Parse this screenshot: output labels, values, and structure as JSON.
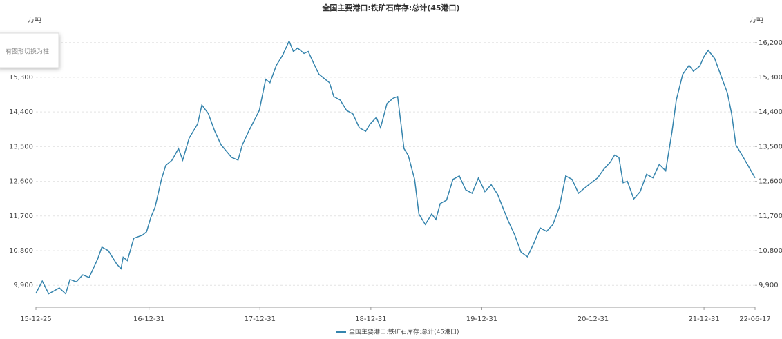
{
  "chart_data": {
    "type": "line",
    "title": "全国主要港口:铁矿石库存:总计(45港口)",
    "y_unit": "万吨",
    "y2_unit": "万吨",
    "toolbox_tip": "有图形切换为柱",
    "grid": true,
    "legend": "bottom",
    "xlim": [
      "2015-12-25",
      "2022-06-17"
    ],
    "xticks": [
      {
        "value": "2015-12-25",
        "label": "15-12-25"
      },
      {
        "value": "2016-12-31",
        "label": "16-12-31"
      },
      {
        "value": "2017-12-31",
        "label": "17-12-31"
      },
      {
        "value": "2018-12-31",
        "label": "18-12-31"
      },
      {
        "value": "2019-12-31",
        "label": "19-12-31"
      },
      {
        "value": "2020-12-31",
        "label": "20-12-31"
      },
      {
        "value": "2021-12-31",
        "label": "21-12-31"
      },
      {
        "value": "2022-06-17",
        "label": "22-06-17"
      }
    ],
    "ylim": [
      9330,
      16590
    ],
    "yticks": [
      {
        "value": 9900,
        "label": "9,900"
      },
      {
        "value": 10800,
        "label": "10,800"
      },
      {
        "value": 11700,
        "label": "11,700"
      },
      {
        "value": 12600,
        "label": "12,600"
      },
      {
        "value": 13500,
        "label": "13,500"
      },
      {
        "value": 14400,
        "label": "14,400"
      },
      {
        "value": 15300,
        "label": "15,300"
      },
      {
        "value": 16200,
        "label": "16,200"
      }
    ],
    "y2lim": [
      9330,
      16590
    ],
    "y2ticks": [
      {
        "value": 9900,
        "label": "9,900"
      },
      {
        "value": 10800,
        "label": "10,800"
      },
      {
        "value": 11700,
        "label": "11,700"
      },
      {
        "value": 12600,
        "label": "12,600"
      },
      {
        "value": 13500,
        "label": "13,500"
      },
      {
        "value": 14400,
        "label": "14,400"
      },
      {
        "value": 15300,
        "label": "15,300"
      },
      {
        "value": 16200,
        "label": "16,200"
      }
    ],
    "x": [
      "2015-12-25",
      "2016-01-15",
      "2016-02-05",
      "2016-03-11",
      "2016-04-01",
      "2016-04-15",
      "2016-05-06",
      "2016-05-27",
      "2016-06-17",
      "2016-07-15",
      "2016-07-29",
      "2016-08-19",
      "2016-09-16",
      "2016-09-30",
      "2016-10-07",
      "2016-10-21",
      "2016-11-11",
      "2016-12-09",
      "2016-12-23",
      "2017-01-06",
      "2017-01-20",
      "2017-02-10",
      "2017-02-24",
      "2017-03-17",
      "2017-04-07",
      "2017-04-21",
      "2017-05-12",
      "2017-06-09",
      "2017-06-23",
      "2017-07-14",
      "2017-08-04",
      "2017-08-25",
      "2017-09-29",
      "2017-10-20",
      "2017-11-03",
      "2017-11-24",
      "2017-12-29",
      "2018-01-19",
      "2018-02-02",
      "2018-02-23",
      "2018-03-16",
      "2018-04-06",
      "2018-04-20",
      "2018-05-04",
      "2018-05-25",
      "2018-06-08",
      "2018-06-29",
      "2018-07-13",
      "2018-08-17",
      "2018-08-31",
      "2018-09-21",
      "2018-10-12",
      "2018-11-02",
      "2018-11-23",
      "2018-12-14",
      "2018-12-28",
      "2019-01-18",
      "2019-02-01",
      "2019-02-22",
      "2019-03-15",
      "2019-03-29",
      "2019-04-19",
      "2019-05-03",
      "2019-05-24",
      "2019-06-07",
      "2019-06-28",
      "2019-07-19",
      "2019-08-02",
      "2019-08-16",
      "2019-09-06",
      "2019-09-27",
      "2019-10-18",
      "2019-11-08",
      "2019-11-29",
      "2019-12-20",
      "2020-01-10",
      "2020-01-31",
      "2020-02-21",
      "2020-03-13",
      "2020-03-27",
      "2020-04-17",
      "2020-05-08",
      "2020-05-29",
      "2020-06-19",
      "2020-07-10",
      "2020-07-31",
      "2020-08-21",
      "2020-09-11",
      "2020-10-02",
      "2020-10-23",
      "2020-11-13",
      "2020-12-04",
      "2020-12-25",
      "2021-01-15",
      "2021-02-05",
      "2021-02-26",
      "2021-03-12",
      "2021-03-26",
      "2021-04-09",
      "2021-04-23",
      "2021-05-14",
      "2021-06-04",
      "2021-06-25",
      "2021-07-16",
      "2021-08-06",
      "2021-08-27",
      "2021-09-17",
      "2021-10-01",
      "2021-10-22",
      "2021-11-12",
      "2021-11-26",
      "2021-12-17",
      "2021-12-31",
      "2022-01-14",
      "2022-02-04",
      "2022-02-25",
      "2022-03-18",
      "2022-04-01",
      "2022-04-15",
      "2022-05-06",
      "2022-06-17"
    ],
    "series": [
      {
        "name": "全国主要港口:铁矿石库存:总计(45港口)",
        "color": "#3584ad",
        "values": [
          9690,
          10010,
          9680,
          9830,
          9680,
          10050,
          9990,
          10170,
          10100,
          10580,
          10890,
          10800,
          10450,
          10330,
          10630,
          10540,
          11120,
          11200,
          11290,
          11660,
          11930,
          12650,
          13010,
          13150,
          13450,
          13150,
          13720,
          14090,
          14580,
          14360,
          13910,
          13550,
          13220,
          13150,
          13540,
          13900,
          14440,
          15250,
          15160,
          15610,
          15880,
          16240,
          15970,
          16060,
          15920,
          15970,
          15610,
          15380,
          15160,
          14800,
          14710,
          14440,
          14350,
          13990,
          13900,
          14080,
          14260,
          13990,
          14620,
          14760,
          14800,
          13450,
          13270,
          12650,
          11750,
          11480,
          11750,
          11610,
          12020,
          12110,
          12650,
          12740,
          12380,
          12290,
          12690,
          12330,
          12510,
          12260,
          11840,
          11570,
          11210,
          10760,
          10640,
          10990,
          11390,
          11300,
          11480,
          11930,
          12740,
          12650,
          12290,
          12430,
          12560,
          12690,
          12920,
          13100,
          13280,
          13220,
          12560,
          12600,
          12140,
          12330,
          12780,
          12690,
          13040,
          12870,
          13900,
          14710,
          15380,
          15610,
          15460,
          15590,
          15840,
          16000,
          15790,
          15340,
          14890,
          14350,
          13540,
          13270,
          12690
        ]
      }
    ]
  }
}
